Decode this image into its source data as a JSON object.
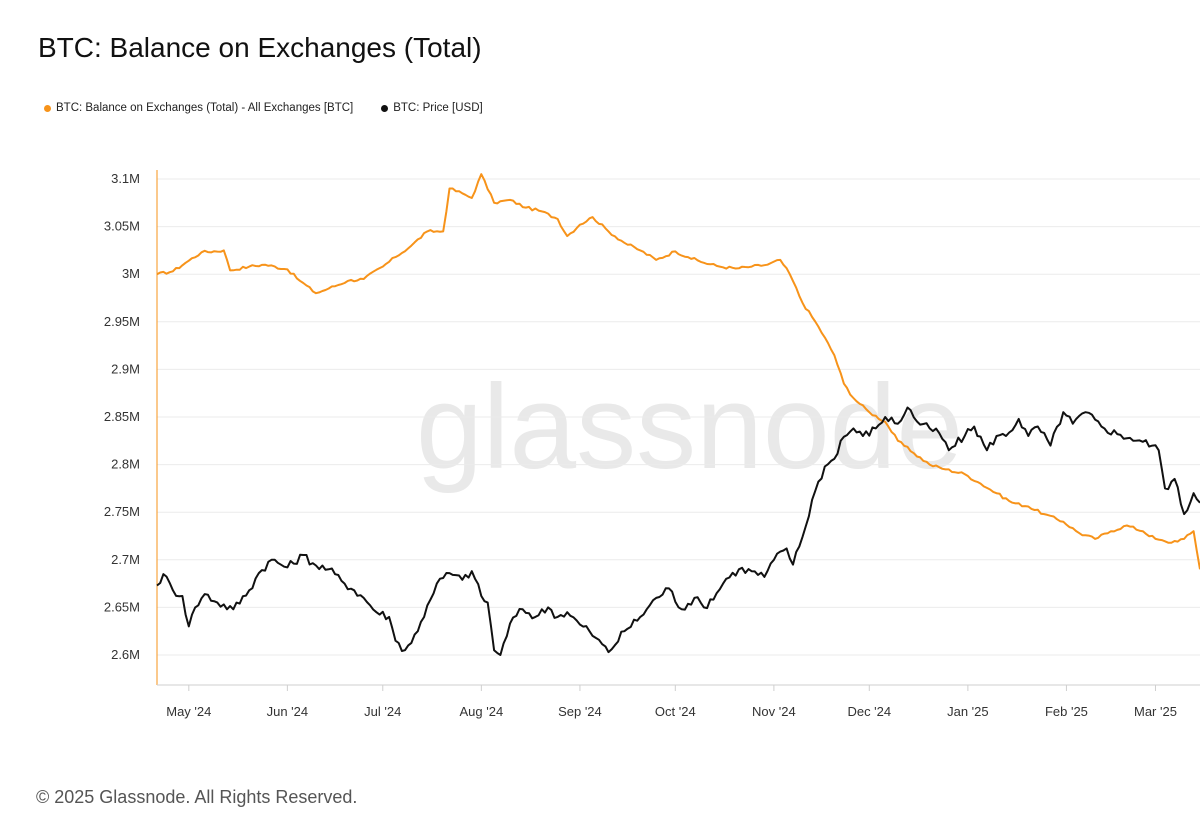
{
  "title": "BTC: Balance on Exchanges (Total)",
  "footer": "© 2025 Glassnode. All Rights Reserved.",
  "watermark": "glassnode",
  "colors": {
    "balance": "#f7931a",
    "price": "#111111",
    "grid": "#ebebeb",
    "axis": "#cfcfcf"
  },
  "chart_data": {
    "type": "line",
    "title": "BTC: Balance on Exchanges (Total)",
    "legend_placement": "top-left",
    "grid": true,
    "x_ticks": [
      "May '24",
      "Jun '24",
      "Jul '24",
      "Aug '24",
      "Sep '24",
      "Oct '24",
      "Nov '24",
      "Dec '24",
      "Jan '25",
      "Feb '25",
      "Mar '25"
    ],
    "y_ticks": [
      "3.1M",
      "3.05M",
      "3M",
      "2.95M",
      "2.9M",
      "2.85M",
      "2.8M",
      "2.75M",
      "2.7M",
      "2.65M",
      "2.6M"
    ],
    "ylim": [
      2570000,
      3110000
    ],
    "x_range": [
      "2024-04-21",
      "2025-03-15"
    ],
    "series": [
      {
        "name": "BTC: Balance on Exchanges (Total) - All Exchanges [BTC]",
        "axis": "left",
        "x": [
          "2024-04-21",
          "2024-04-26",
          "2024-04-30",
          "2024-05-05",
          "2024-05-12",
          "2024-05-14",
          "2024-05-20",
          "2024-05-25",
          "2024-06-01",
          "2024-06-05",
          "2024-06-10",
          "2024-06-14",
          "2024-06-20",
          "2024-06-25",
          "2024-07-01",
          "2024-07-05",
          "2024-07-10",
          "2024-07-15",
          "2024-07-20",
          "2024-07-22",
          "2024-07-26",
          "2024-07-29",
          "2024-08-01",
          "2024-08-05",
          "2024-08-10",
          "2024-08-15",
          "2024-08-20",
          "2024-08-25",
          "2024-08-28",
          "2024-09-01",
          "2024-09-05",
          "2024-09-10",
          "2024-09-15",
          "2024-09-20",
          "2024-09-25",
          "2024-10-01",
          "2024-10-05",
          "2024-10-10",
          "2024-10-15",
          "2024-10-20",
          "2024-10-25",
          "2024-10-30",
          "2024-11-03",
          "2024-11-06",
          "2024-11-10",
          "2024-11-15",
          "2024-11-20",
          "2024-11-23",
          "2024-11-26",
          "2024-12-01",
          "2024-12-06",
          "2024-12-10",
          "2024-12-15",
          "2024-12-20",
          "2024-12-25",
          "2024-12-31",
          "2025-01-05",
          "2025-01-10",
          "2025-01-15",
          "2025-01-20",
          "2025-01-25",
          "2025-01-31",
          "2025-02-05",
          "2025-02-10",
          "2025-02-15",
          "2025-02-20",
          "2025-02-25",
          "2025-03-01",
          "2025-03-05",
          "2025-03-10",
          "2025-03-13",
          "2025-03-15"
        ],
        "values": [
          3000000,
          3003000,
          3012000,
          3023000,
          3025000,
          3004000,
          3008000,
          3010000,
          3005000,
          2993000,
          2980000,
          2985000,
          2993000,
          2995000,
          3008000,
          3018000,
          3030000,
          3045000,
          3045000,
          3090000,
          3085000,
          3080000,
          3105000,
          3075000,
          3078000,
          3070000,
          3066000,
          3058000,
          3040000,
          3052000,
          3060000,
          3045000,
          3033000,
          3025000,
          3015000,
          3024000,
          3018000,
          3012000,
          3008000,
          3006000,
          3008000,
          3010000,
          3015000,
          3000000,
          2970000,
          2945000,
          2915000,
          2885000,
          2870000,
          2855000,
          2845000,
          2825000,
          2812000,
          2800000,
          2795000,
          2790000,
          2780000,
          2770000,
          2760000,
          2756000,
          2748000,
          2740000,
          2728000,
          2722000,
          2730000,
          2736000,
          2730000,
          2722000,
          2718000,
          2722000,
          2730000,
          2690000
        ]
      },
      {
        "name": "BTC: Price [USD]",
        "axis": "right",
        "x": [
          "2024-04-21",
          "2024-04-23",
          "2024-04-26",
          "2024-04-29",
          "2024-05-01",
          "2024-05-03",
          "2024-05-06",
          "2024-05-10",
          "2024-05-15",
          "2024-05-20",
          "2024-05-23",
          "2024-05-27",
          "2024-06-01",
          "2024-06-06",
          "2024-06-10",
          "2024-06-14",
          "2024-06-18",
          "2024-06-22",
          "2024-06-25",
          "2024-06-29",
          "2024-07-03",
          "2024-07-05",
          "2024-07-08",
          "2024-07-12",
          "2024-07-15",
          "2024-07-18",
          "2024-07-22",
          "2024-07-26",
          "2024-07-29",
          "2024-08-01",
          "2024-08-03",
          "2024-08-05",
          "2024-08-07",
          "2024-08-10",
          "2024-08-14",
          "2024-08-18",
          "2024-08-22",
          "2024-08-25",
          "2024-08-28",
          "2024-09-01",
          "2024-09-04",
          "2024-09-06",
          "2024-09-10",
          "2024-09-15",
          "2024-09-20",
          "2024-09-25",
          "2024-09-29",
          "2024-10-03",
          "2024-10-07",
          "2024-10-10",
          "2024-10-14",
          "2024-10-17",
          "2024-10-21",
          "2024-10-25",
          "2024-10-29",
          "2024-11-01",
          "2024-11-05",
          "2024-11-07",
          "2024-11-11",
          "2024-11-13",
          "2024-11-17",
          "2024-11-20",
          "2024-11-22",
          "2024-11-26",
          "2024-11-29",
          "2024-12-03",
          "2024-12-06",
          "2024-12-10",
          "2024-12-13",
          "2024-12-17",
          "2024-12-20",
          "2024-12-23",
          "2024-12-26",
          "2024-12-31",
          "2025-01-03",
          "2025-01-07",
          "2025-01-10",
          "2025-01-13",
          "2025-01-17",
          "2025-01-20",
          "2025-01-23",
          "2025-01-27",
          "2025-01-31",
          "2025-02-03",
          "2025-02-07",
          "2025-02-12",
          "2025-02-17",
          "2025-02-21",
          "2025-02-25",
          "2025-02-28",
          "2025-03-02",
          "2025-03-04",
          "2025-03-07",
          "2025-03-10",
          "2025-03-13",
          "2025-03-15"
        ],
        "values": [
          2673000,
          2685000,
          2668000,
          2662000,
          2630000,
          2650000,
          2664000,
          2655000,
          2648000,
          2668000,
          2686000,
          2700000,
          2692000,
          2705000,
          2694000,
          2690000,
          2678000,
          2668000,
          2660000,
          2645000,
          2640000,
          2615000,
          2605000,
          2625000,
          2652000,
          2675000,
          2686000,
          2679000,
          2688000,
          2662000,
          2655000,
          2605000,
          2600000,
          2633000,
          2648000,
          2640000,
          2650000,
          2640000,
          2645000,
          2632000,
          2625000,
          2618000,
          2603000,
          2625000,
          2640000,
          2660000,
          2670000,
          2648000,
          2660000,
          2650000,
          2665000,
          2680000,
          2690000,
          2688000,
          2682000,
          2700000,
          2712000,
          2695000,
          2735000,
          2763000,
          2798000,
          2806000,
          2825000,
          2838000,
          2830000,
          2838000,
          2850000,
          2843000,
          2860000,
          2842000,
          2838000,
          2833000,
          2815000,
          2830000,
          2840000,
          2815000,
          2830000,
          2830000,
          2848000,
          2830000,
          2840000,
          2820000,
          2855000,
          2843000,
          2855000,
          2840000,
          2832000,
          2828000,
          2824000,
          2820000,
          2815000,
          2775000,
          2785000,
          2748000,
          2770000,
          2760000
        ]
      }
    ]
  }
}
